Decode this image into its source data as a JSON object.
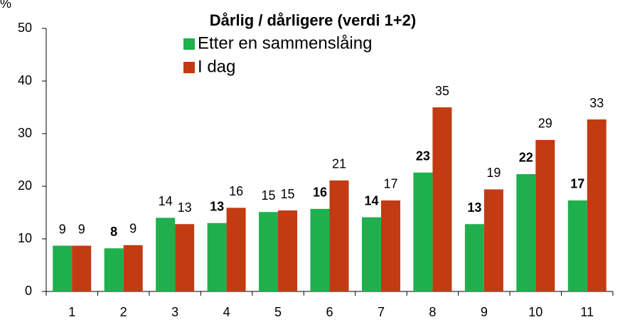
{
  "chart_data": {
    "type": "bar",
    "title": "Dårlig / dårligere (verdi 1+2)",
    "ylabel": "%",
    "categories": [
      "1",
      "2",
      "3",
      "4",
      "5",
      "6",
      "7",
      "8",
      "9",
      "10",
      "11"
    ],
    "series": [
      {
        "name": "Etter en sammenslåing",
        "color": "#1fb04e",
        "values": [
          8.7,
          8.2,
          14.0,
          13.0,
          15.1,
          15.7,
          14.1,
          22.6,
          12.8,
          22.3,
          17.3
        ],
        "value_labels": [
          "9",
          "8",
          "14",
          "13",
          "15",
          "16",
          "14",
          "23",
          "13",
          "22",
          "17"
        ],
        "label_bold": [
          false,
          true,
          false,
          true,
          false,
          true,
          true,
          true,
          true,
          true,
          true
        ]
      },
      {
        "name": "I dag",
        "color": "#c23b12",
        "values": [
          8.7,
          8.8,
          12.8,
          15.9,
          15.4,
          21.1,
          17.3,
          35.0,
          19.4,
          28.8,
          32.7
        ],
        "value_labels": [
          "9",
          "9",
          "13",
          "16",
          "15",
          "21",
          "17",
          "35",
          "19",
          "29",
          "33"
        ],
        "label_bold": [
          false,
          false,
          false,
          false,
          false,
          false,
          false,
          false,
          false,
          false,
          false
        ]
      }
    ],
    "ylim": [
      0,
      50
    ],
    "yticks": [
      0,
      10,
      20,
      30,
      40,
      50
    ]
  }
}
